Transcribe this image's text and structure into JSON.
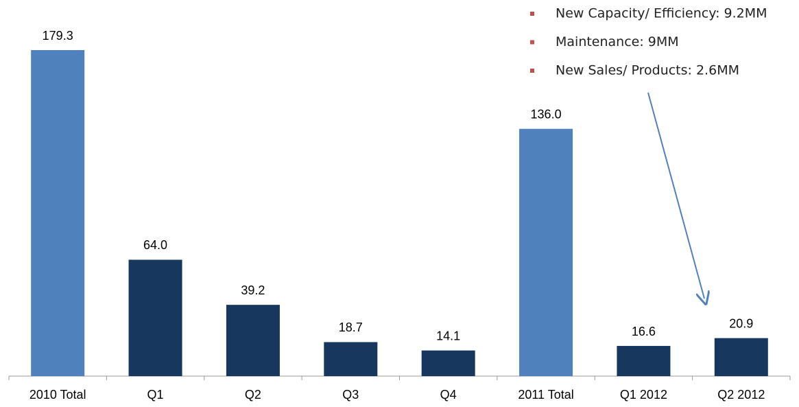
{
  "chart_data": {
    "type": "bar",
    "categories": [
      "2010 Total",
      "Q1",
      "Q2",
      "Q3",
      "Q4",
      "2011 Total",
      "Q1 2012",
      "Q2 2012"
    ],
    "values": [
      179.3,
      64,
      39.2,
      18.7,
      14.1,
      136,
      16.6,
      20.9
    ],
    "value_labels": [
      "179.3",
      "64.0",
      "39.2",
      "18.7",
      "14.1",
      "136.0",
      "16.6",
      "20.9"
    ],
    "colors": [
      "#4f81bd",
      "#17375e",
      "#17375e",
      "#17375e",
      "#17375e",
      "#4f81bd",
      "#17375e",
      "#17375e"
    ],
    "annotations": [
      "New Capacity/ Efficiency: 9.2MM",
      "Maintenance: 9MM",
      "New Sales/ Products: 2.6MM"
    ]
  }
}
